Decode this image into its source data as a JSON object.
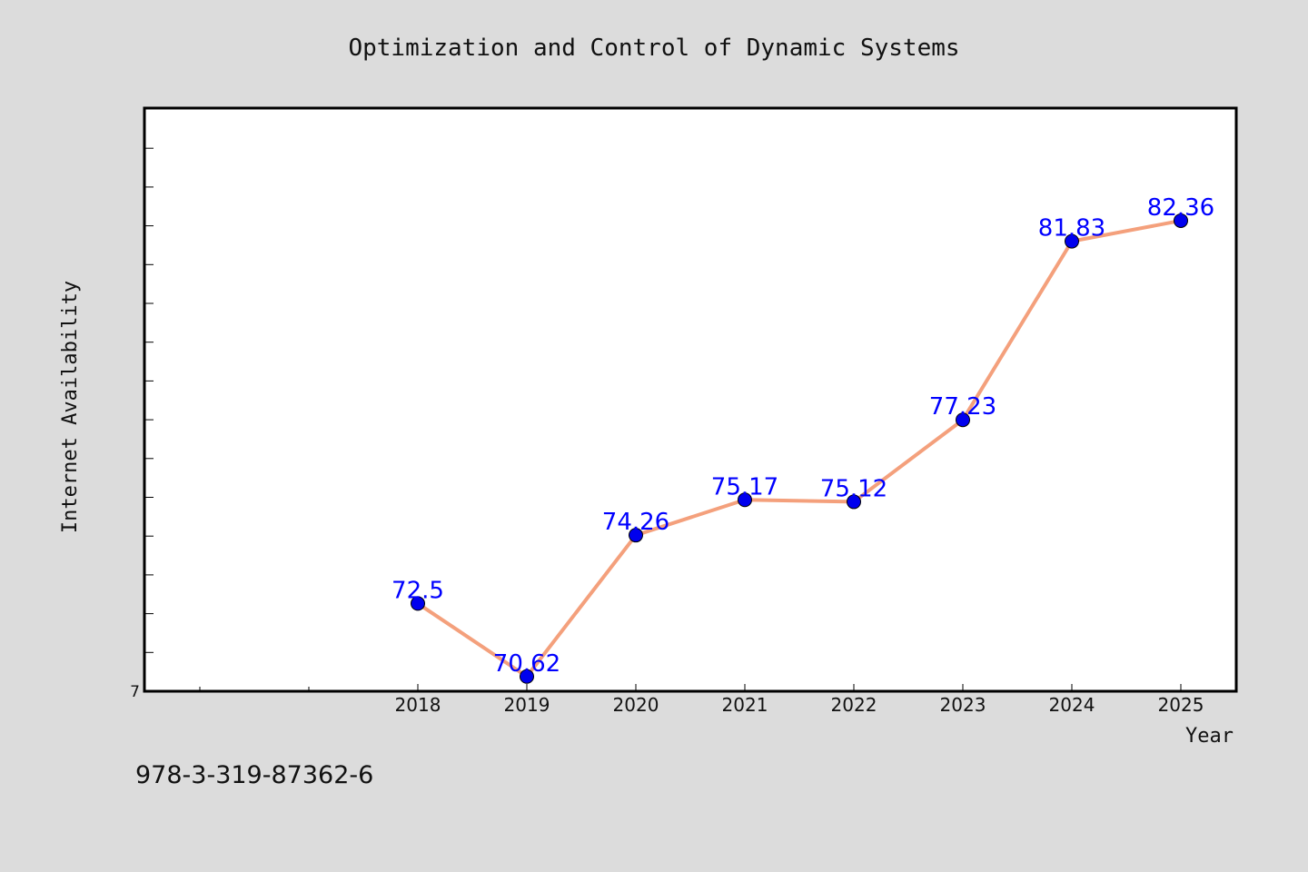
{
  "chart_data": {
    "type": "line",
    "title": "Optimization and Control of Dynamic Systems",
    "xlabel": "Year",
    "ylabel": "Internet Availability",
    "categories": [
      "2018",
      "2019",
      "2020",
      "2021",
      "2022",
      "2023",
      "2024",
      "2025"
    ],
    "series": [
      {
        "values": [
          72.5,
          70.62,
          74.26,
          75.17,
          75.12,
          77.23,
          81.83,
          82.36
        ],
        "labels": [
          "72.5",
          "70.62",
          "74.26",
          "75.17",
          "75.12",
          "77.23",
          "81.83",
          "82.36"
        ]
      }
    ],
    "ylim": [
      70.24,
      85.26
    ],
    "y_tick_labels": [
      "7"
    ],
    "grid": false,
    "line_color": "#f4a07c",
    "marker_color": "#0000ee",
    "label_color": "#0000ff"
  },
  "footer": {
    "isbn": "978-3-319-87362-6"
  }
}
